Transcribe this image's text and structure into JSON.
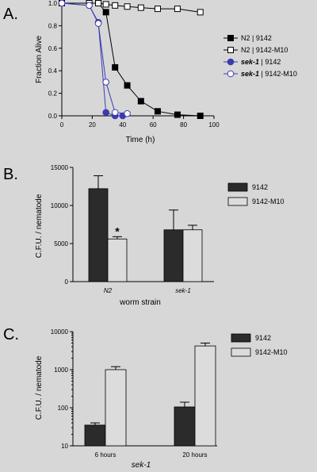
{
  "panels": [
    {
      "letter": "A.",
      "chart_data": {
        "type": "line",
        "xlabel": "Time (h)",
        "ylabel": "Fraction Alive",
        "xlim": [
          0,
          100
        ],
        "ylim": [
          0,
          1.0
        ],
        "xticks": [
          "0",
          "20",
          "40",
          "60",
          "80",
          "100"
        ],
        "yticks": [
          "0.0",
          "0.2",
          "0.4",
          "0.6",
          "0.8",
          "1.0"
        ],
        "legend_position": "right",
        "series": [
          {
            "name": "N2 | 9142",
            "marker": "square",
            "fill": "filled",
            "color": "#000000",
            "x": [
              0,
              18,
              24,
              29,
              35,
              43,
              52,
              63,
              76,
              91
            ],
            "y": [
              1.0,
              1.0,
              1.0,
              0.92,
              0.43,
              0.27,
              0.13,
              0.04,
              0.01,
              0.0
            ]
          },
          {
            "name": "N2 | 9142-M10",
            "marker": "square",
            "fill": "open",
            "color": "#000000",
            "x": [
              0,
              18,
              24,
              29,
              35,
              43,
              52,
              63,
              76,
              91
            ],
            "y": [
              1.0,
              1.0,
              1.0,
              0.99,
              0.98,
              0.97,
              0.96,
              0.95,
              0.95,
              0.92
            ]
          },
          {
            "name_prefix": "sek-1",
            "name_suffix": " | 9142",
            "marker": "circle",
            "fill": "filled",
            "color": "#3b3bb0",
            "x": [
              0,
              18,
              24,
              29,
              35,
              40
            ],
            "y": [
              1.0,
              0.98,
              0.83,
              0.03,
              0.0,
              0.0
            ]
          },
          {
            "name_prefix": "sek-1",
            "name_suffix": " | 9142-M10",
            "marker": "circle",
            "fill": "open",
            "color": "#3b3bb0",
            "x": [
              0,
              18,
              24,
              29,
              35,
              43
            ],
            "y": [
              1.0,
              0.98,
              0.82,
              0.3,
              0.03,
              0.02
            ]
          }
        ]
      }
    },
    {
      "letter": "B.",
      "chart_data": {
        "type": "bar",
        "xlabel": "worm strain",
        "ylabel": "C.F.U. / nematode",
        "ylim": [
          0,
          15000
        ],
        "yticks": [
          "0",
          "5000",
          "10000",
          "15000"
        ],
        "categories": [
          "N2",
          "sek-1"
        ],
        "category_style": "italic",
        "legend_position": "right",
        "series": [
          {
            "name": "9142",
            "color": "#2b2b2b",
            "values": [
              12200,
              6800
            ],
            "errors": [
              1700,
              2600
            ]
          },
          {
            "name": "9142-M10",
            "color": "#dcdcdc",
            "values": [
              5600,
              6800
            ],
            "errors": [
              300,
              600
            ]
          }
        ],
        "annotations": [
          {
            "text": "*",
            "category": 0,
            "series": 1
          }
        ]
      }
    },
    {
      "letter": "C.",
      "chart_data": {
        "type": "bar",
        "xlabel": "sek-1",
        "xlabel_style": "italic",
        "ylabel": "C.F.U. / nematode",
        "yscale": "log",
        "ylim": [
          10,
          10000
        ],
        "yticks": [
          "10",
          "100",
          "1000",
          "10000"
        ],
        "categories": [
          "6 hours",
          "20 hours"
        ],
        "legend_position": "top-right",
        "series": [
          {
            "name": "9142",
            "color": "#2b2b2b",
            "values": [
              35,
              105
            ],
            "errors": [
              5,
              35
            ]
          },
          {
            "name": "9142-M10",
            "color": "#dcdcdc",
            "values": [
              1000,
              4200
            ],
            "errors": [
              200,
              800
            ]
          }
        ]
      }
    }
  ]
}
